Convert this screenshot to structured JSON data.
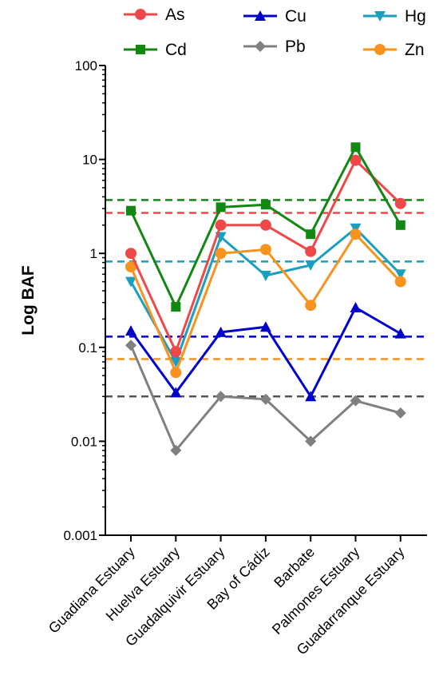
{
  "chart_data": {
    "type": "line",
    "ylabel": "Log BAF",
    "yscale": "log",
    "ylim": [
      0.001,
      100
    ],
    "yticks": [
      {
        "value": 100,
        "label": "100"
      },
      {
        "value": 10,
        "label": "10"
      },
      {
        "value": 1,
        "label": "1"
      },
      {
        "value": 0.1,
        "label": "0.1"
      },
      {
        "value": 0.01,
        "label": "0.01"
      },
      {
        "value": 0.001,
        "label": "0.001"
      }
    ],
    "categories": [
      "Guadiana Estuary",
      "Huelva Estuary",
      "Guadalquivir Estuary",
      "Bay of Cádiz",
      "Barbate",
      "Palmones Estuary",
      "Guadarranque Estuary"
    ],
    "legend_placement": "top",
    "series": [
      {
        "name": "Pb",
        "color": "#808080",
        "marker": "diamond",
        "values": [
          0.105,
          0.008,
          0.03,
          0.028,
          0.01,
          0.027,
          0.02
        ]
      },
      {
        "name": "Cu",
        "color": "#0000cc",
        "marker": "triangle-up",
        "values": [
          0.15,
          0.033,
          0.145,
          0.165,
          0.03,
          0.265,
          0.14
        ]
      },
      {
        "name": "Hg",
        "color": "#1a9fbe",
        "marker": "triangle-down",
        "values": [
          0.5,
          0.07,
          1.5,
          0.58,
          0.75,
          1.85,
          0.6
        ]
      },
      {
        "name": "Zn",
        "color": "#f7931e",
        "marker": "circle",
        "values": [
          0.72,
          0.054,
          1.0,
          1.1,
          0.28,
          1.6,
          0.5
        ]
      },
      {
        "name": "As",
        "color": "#f04848",
        "marker": "circle",
        "values": [
          1.0,
          0.09,
          2.0,
          2.0,
          1.05,
          9.8,
          3.4
        ]
      },
      {
        "name": "Cd",
        "color": "#118811",
        "marker": "square",
        "values": [
          2.85,
          0.27,
          3.1,
          3.3,
          1.6,
          13.5,
          2.0
        ]
      }
    ],
    "reference_lines": [
      {
        "series": "Cd",
        "color": "#118811",
        "value": 3.7
      },
      {
        "series": "As",
        "color": "#f04848",
        "value": 2.7
      },
      {
        "series": "Hg",
        "color": "#1a9fbe",
        "value": 0.82
      },
      {
        "series": "Cu",
        "color": "#0000cc",
        "value": 0.13
      },
      {
        "series": "Zn",
        "color": "#f7931e",
        "value": 0.075
      },
      {
        "series": "Pb",
        "color": "#555555",
        "value": 0.03
      }
    ]
  }
}
